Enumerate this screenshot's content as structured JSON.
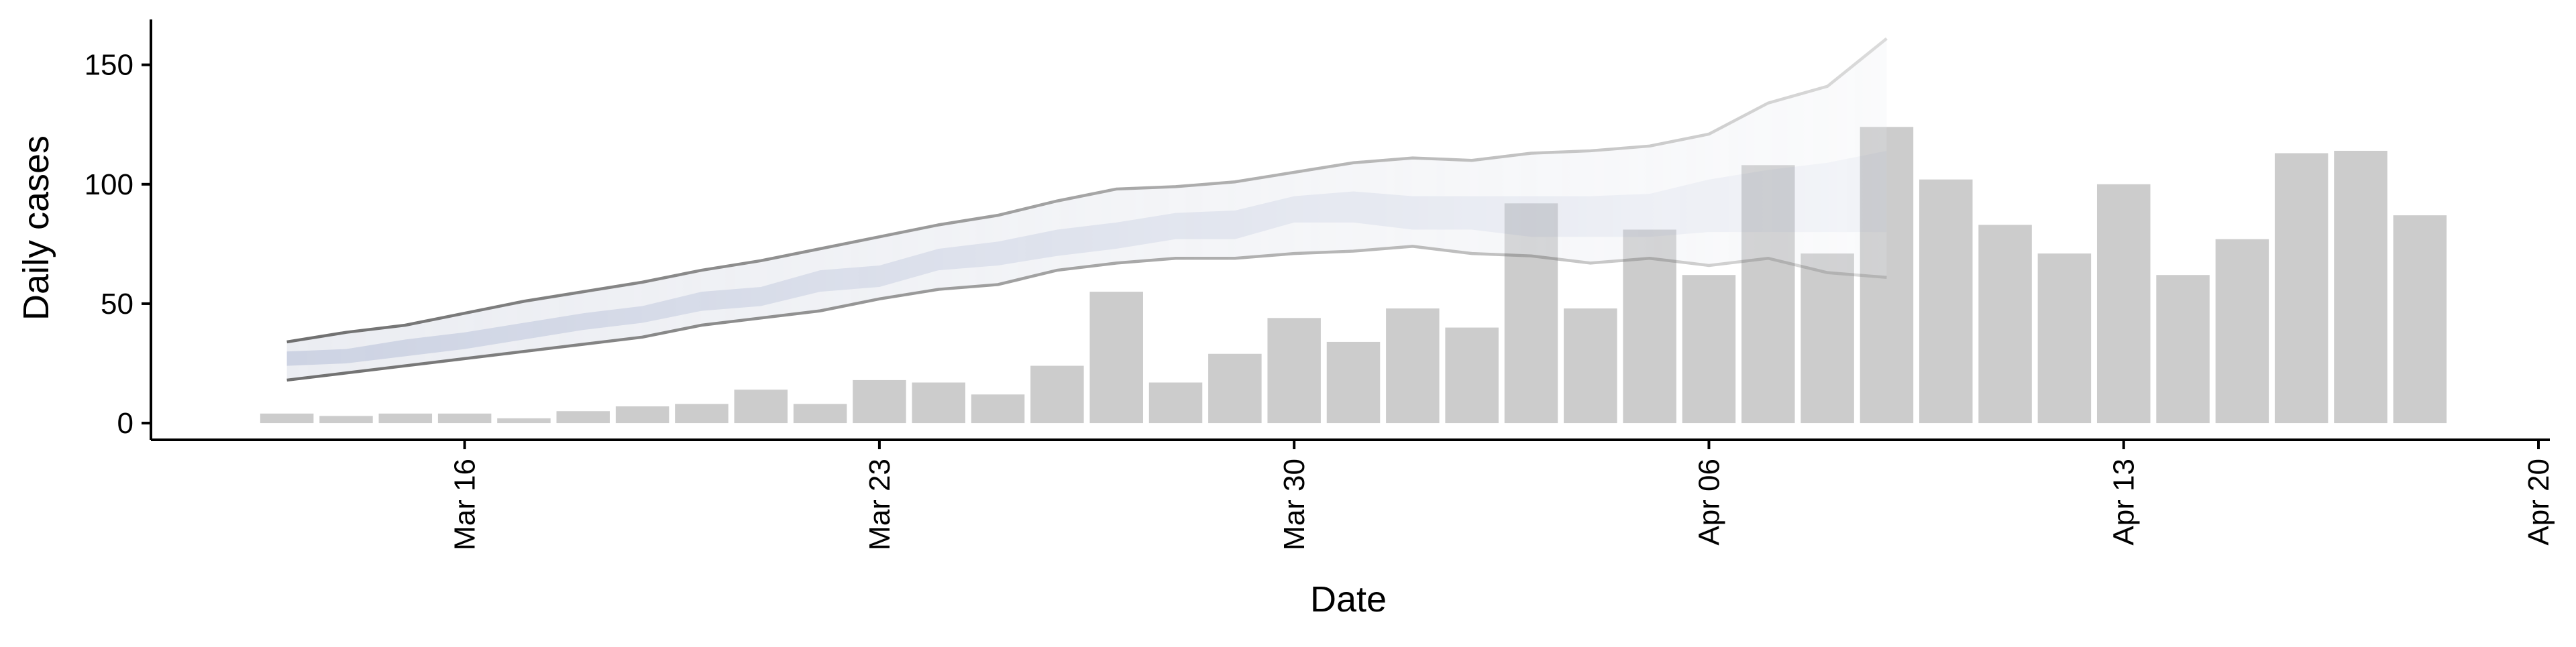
{
  "chart_data": {
    "type": "bar",
    "x_label": "Date",
    "y_label": "Daily cases",
    "color": "#cccccc",
    "x": [
      "Mar 13",
      "Mar 14",
      "Mar 15",
      "Mar 16",
      "Mar 17",
      "Mar 18",
      "Mar 19",
      "Mar 20",
      "Mar 21",
      "Mar 22",
      "Mar 23",
      "Mar 24",
      "Mar 25",
      "Mar 26",
      "Mar 27",
      "Mar 28",
      "Mar 29",
      "Mar 30",
      "Mar 31",
      "Apr 01",
      "Apr 02",
      "Apr 03",
      "Apr 04",
      "Apr 05",
      "Apr 06",
      "Apr 07",
      "Apr 08",
      "Apr 09",
      "Apr 10",
      "Apr 11",
      "Apr 12",
      "Apr 13",
      "Apr 14",
      "Apr 15",
      "Apr 16",
      "Apr 17",
      "Apr 18"
    ],
    "values": [
      4,
      3,
      4,
      4,
      2,
      5,
      7,
      8,
      14,
      8,
      18,
      17,
      12,
      24,
      55,
      17,
      29,
      44,
      34,
      48,
      40,
      92,
      48,
      81,
      62,
      108,
      71,
      124,
      102,
      83,
      71,
      100,
      62,
      77,
      113,
      114,
      87
    ],
    "forecast": {
      "x": [
        "Mar 13",
        "Mar 14",
        "Mar 15",
        "Mar 16",
        "Mar 17",
        "Mar 18",
        "Mar 19",
        "Mar 20",
        "Mar 21",
        "Mar 22",
        "Mar 23",
        "Mar 24",
        "Mar 25",
        "Mar 26",
        "Mar 27",
        "Mar 28",
        "Mar 29",
        "Mar 30",
        "Mar 31",
        "Apr 01",
        "Apr 02",
        "Apr 03",
        "Apr 04",
        "Apr 05",
        "Apr 06",
        "Apr 07",
        "Apr 08",
        "Apr 09"
      ],
      "upper": [
        34,
        38,
        41,
        46,
        51,
        55,
        59,
        64,
        68,
        73,
        78,
        83,
        87,
        93,
        98,
        99,
        101,
        105,
        109,
        111,
        110,
        113,
        114,
        116,
        121,
        134,
        141,
        161
      ],
      "lower": [
        18,
        21,
        24,
        27,
        30,
        33,
        36,
        41,
        44,
        47,
        52,
        56,
        58,
        64,
        67,
        69,
        69,
        71,
        72,
        74,
        71,
        70,
        67,
        69,
        66,
        69,
        63,
        61
      ],
      "inner_upper": [
        30,
        31,
        35,
        38,
        42,
        46,
        49,
        55,
        57,
        64,
        66,
        73,
        76,
        81,
        84,
        88,
        89,
        95,
        97,
        95,
        95,
        95,
        95,
        96,
        102,
        106,
        109,
        114
      ],
      "inner_lower": [
        24,
        25,
        28,
        31,
        35,
        39,
        42,
        47,
        49,
        55,
        57,
        64,
        66,
        70,
        73,
        77,
        77,
        84,
        84,
        81,
        81,
        78,
        78,
        78,
        80,
        80,
        80,
        80
      ],
      "band_color": "#e6e8ef",
      "inner_color": "#c3c9dd",
      "line_color": "#6f6f6f"
    },
    "xlim": [
      "Mar 11",
      "Apr 20"
    ],
    "xticks": [
      "Mar 16",
      "Mar 23",
      "Mar 30",
      "Apr 06",
      "Apr 13",
      "Apr 20"
    ],
    "ylim": [
      -7,
      169
    ],
    "yticks": [
      0,
      50,
      100,
      150
    ]
  }
}
